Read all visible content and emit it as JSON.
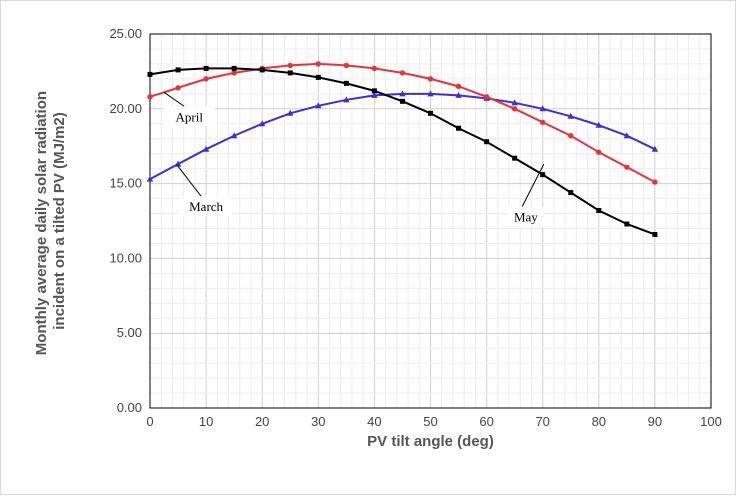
{
  "chart_data": {
    "type": "line",
    "xlabel": "PV tilt angle (deg)",
    "ylabel": "Monthly average daily solar radiation incident on a tilted PV (MJ/m2)",
    "ylabel_lines": [
      "Monthly average daily solar radiation",
      "incident on a tilted PV (MJ/m2)"
    ],
    "xlim": [
      0,
      100
    ],
    "ylim": [
      0,
      25
    ],
    "x_ticks": [
      "0",
      "10",
      "20",
      "30",
      "40",
      "50",
      "60",
      "70",
      "80",
      "90",
      "100"
    ],
    "y_ticks": [
      "0.00",
      "5.00",
      "10.00",
      "15.00",
      "20.00",
      "25.00"
    ],
    "grid": true,
    "x": [
      0,
      5,
      10,
      15,
      20,
      25,
      30,
      35,
      40,
      45,
      50,
      55,
      60,
      65,
      70,
      75,
      80,
      85,
      90
    ],
    "series": [
      {
        "name": "March",
        "color": "#3a2fd9",
        "marker": "triangle",
        "values": [
          15.3,
          16.3,
          17.3,
          18.2,
          19.0,
          19.7,
          20.2,
          20.6,
          20.9,
          21.0,
          21.0,
          20.9,
          20.7,
          20.4,
          20.0,
          19.5,
          18.9,
          18.2,
          17.3
        ]
      },
      {
        "name": "April",
        "color": "#e8323a",
        "marker": "circle",
        "values": [
          20.8,
          21.4,
          22.0,
          22.4,
          22.7,
          22.9,
          23.0,
          22.9,
          22.7,
          22.4,
          22.0,
          21.5,
          20.8,
          20.0,
          19.1,
          18.2,
          17.1,
          16.1,
          15.1
        ]
      },
      {
        "name": "May",
        "color": "#000000",
        "marker": "square",
        "values": [
          22.3,
          22.6,
          22.7,
          22.7,
          22.6,
          22.4,
          22.1,
          21.7,
          21.2,
          20.5,
          19.7,
          18.7,
          17.8,
          16.7,
          15.6,
          14.4,
          13.2,
          12.3,
          11.6
        ]
      }
    ],
    "annotations": [
      {
        "label": "April",
        "series": "April",
        "tx": 7,
        "ty": 19.3,
        "ax": 2.5,
        "ay": 21.1
      },
      {
        "label": "March",
        "series": "March",
        "tx": 10,
        "ty": 13.3,
        "ax": 4.7,
        "ay": 16.3
      },
      {
        "label": "May",
        "series": "May",
        "tx": 67,
        "ty": 12.6,
        "ax": 70.2,
        "ay": 16.3
      }
    ]
  }
}
